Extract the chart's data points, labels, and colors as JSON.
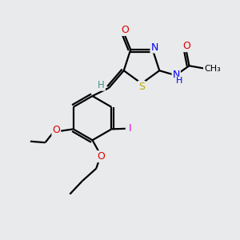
{
  "bg_color": "#e8eaec",
  "bond_color": "#000000",
  "atom_colors": {
    "O": "#dd0000",
    "N": "#0000ee",
    "S": "#bbaa00",
    "I": "#ee00ee",
    "C": "#000000",
    "H": "#4a9090"
  },
  "figsize": [
    3.0,
    3.0
  ],
  "dpi": 100,
  "lw": 1.6
}
